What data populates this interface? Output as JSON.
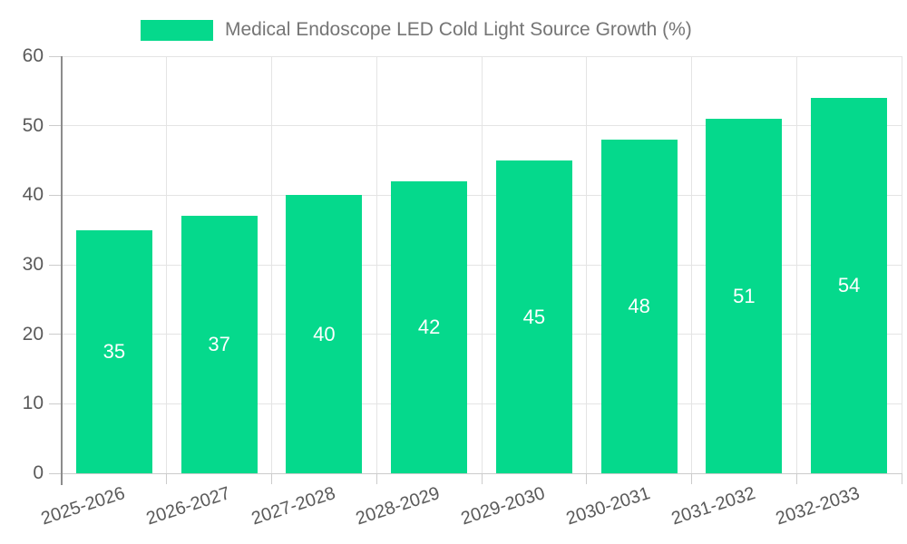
{
  "chart_data": {
    "type": "bar",
    "title": "Medical Endoscope LED Cold Light Source Growth (%)",
    "categories": [
      "2025-2026",
      "2026-2027",
      "2027-2028",
      "2028-2029",
      "2029-2030",
      "2030-2031",
      "2031-2032",
      "2032-2033"
    ],
    "values": [
      35,
      37,
      40,
      42,
      45,
      48,
      51,
      54
    ],
    "xlabel": "",
    "ylabel": "",
    "ylim": [
      0,
      60
    ],
    "yticks": [
      0,
      10,
      20,
      30,
      40,
      50,
      60
    ],
    "grid": true,
    "legend_position": "top",
    "bar_color": "#05D98C",
    "value_label_color": "#ffffff",
    "colors": {
      "grid_line": "#e4e4e4",
      "y_axis_line": "#8c8c8c",
      "x_axis_line": "#cccccc",
      "tick_mark": "#cccccc",
      "axis_label_text": "#5a5a5a",
      "legend_text": "#757575",
      "background": "#ffffff"
    }
  }
}
